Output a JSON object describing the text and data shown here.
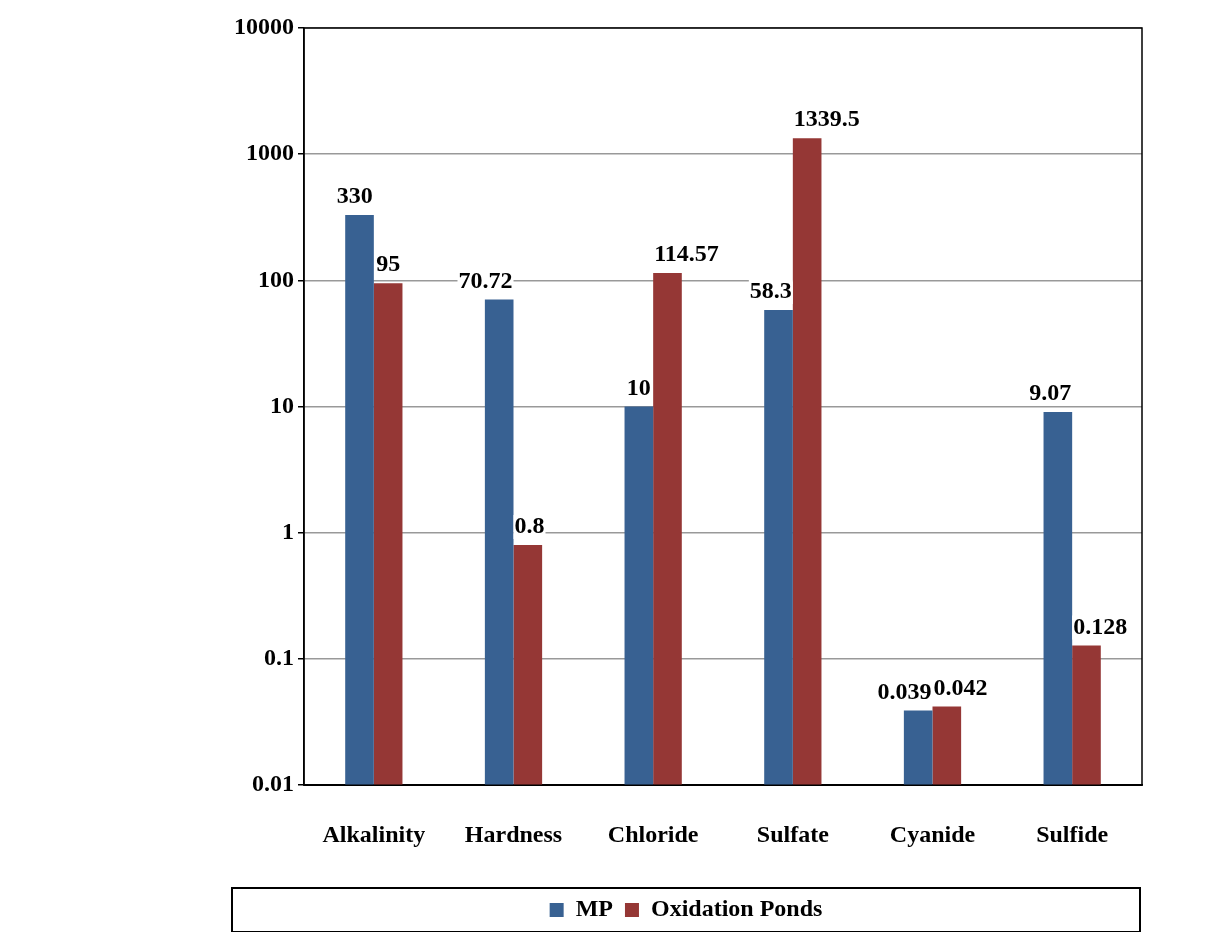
{
  "chart_data": {
    "type": "bar",
    "categories": [
      "Alkalinity",
      "Hardness",
      "Chloride",
      "Sulfate",
      "Cyanide",
      "Sulfide"
    ],
    "series": [
      {
        "name": "MP",
        "color": "#386192",
        "values": [
          330,
          70.72,
          10,
          58.3,
          0.039,
          9.07
        ]
      },
      {
        "name": "Oxidation Ponds",
        "color": "#953735",
        "values": [
          95,
          0.8,
          114.57,
          1339.5,
          0.042,
          0.128
        ]
      }
    ],
    "ylim": [
      0.01,
      10000
    ],
    "yticks": [
      0.01,
      0.1,
      1,
      10,
      100,
      1000,
      10000
    ],
    "log": true,
    "grid": "y",
    "legend": "bottom",
    "data_labels": true
  }
}
